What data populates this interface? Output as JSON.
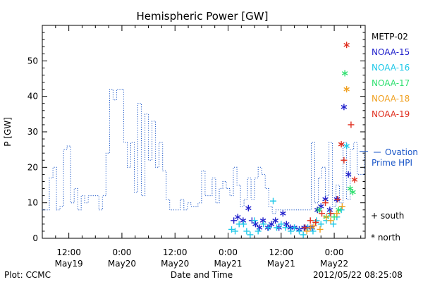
{
  "chart_data": {
    "type": "line",
    "title": "Hemispheric Power [GW]",
    "ylabel": "P [GW]",
    "xlabel": "Date and Time",
    "ylim": [
      0,
      60
    ],
    "yticks": [
      0,
      10,
      20,
      30,
      40,
      50
    ],
    "x_unit": "hours since 2012/05/19 00:00",
    "xlim": [
      6,
      79
    ],
    "xticks": [
      {
        "x": 12,
        "time": "12:00",
        "date": "May19"
      },
      {
        "x": 24,
        "time": "0:00",
        "date": "May20"
      },
      {
        "x": 36,
        "time": "12:00",
        "date": "May20"
      },
      {
        "x": 48,
        "time": "0:00",
        "date": "May21"
      },
      {
        "x": 60,
        "time": "12:00",
        "date": "May21"
      },
      {
        "x": 72,
        "time": "0:00",
        "date": "May22"
      }
    ],
    "ovation": {
      "name": "Ovation Prime HPI",
      "label_line1": "Ovation",
      "label_line2": "Prime HPI",
      "current_value": 24.5,
      "color": "#1a56c8",
      "values": [
        [
          6.0,
          8
        ],
        [
          6.8,
          8
        ],
        [
          7.6,
          17
        ],
        [
          8.4,
          20
        ],
        [
          9.2,
          8
        ],
        [
          10.0,
          9
        ],
        [
          10.8,
          25
        ],
        [
          11.6,
          26
        ],
        [
          12.4,
          10
        ],
        [
          13.2,
          14
        ],
        [
          14.0,
          8
        ],
        [
          14.8,
          12
        ],
        [
          15.6,
          10
        ],
        [
          16.4,
          12
        ],
        [
          17.2,
          12
        ],
        [
          18.0,
          12
        ],
        [
          18.8,
          8
        ],
        [
          19.6,
          12
        ],
        [
          20.4,
          24
        ],
        [
          21.2,
          42
        ],
        [
          22.0,
          39
        ],
        [
          22.8,
          42
        ],
        [
          23.6,
          42
        ],
        [
          24.4,
          27
        ],
        [
          25.2,
          20
        ],
        [
          26.0,
          27
        ],
        [
          26.8,
          13
        ],
        [
          27.6,
          38
        ],
        [
          28.4,
          12
        ],
        [
          29.2,
          35
        ],
        [
          30.0,
          22
        ],
        [
          30.8,
          33
        ],
        [
          31.6,
          20
        ],
        [
          32.4,
          27
        ],
        [
          33.2,
          19
        ],
        [
          34.0,
          11
        ],
        [
          34.8,
          8
        ],
        [
          35.6,
          8
        ],
        [
          36.4,
          8
        ],
        [
          37.2,
          11
        ],
        [
          38.0,
          8
        ],
        [
          38.8,
          10
        ],
        [
          39.6,
          9
        ],
        [
          40.4,
          9
        ],
        [
          41.2,
          10
        ],
        [
          42.0,
          19
        ],
        [
          42.8,
          12
        ],
        [
          43.6,
          12
        ],
        [
          44.4,
          17
        ],
        [
          45.2,
          10
        ],
        [
          46.0,
          14
        ],
        [
          46.8,
          16
        ],
        [
          47.6,
          14
        ],
        [
          48.4,
          12
        ],
        [
          49.2,
          20
        ],
        [
          50.0,
          15
        ],
        [
          50.8,
          9
        ],
        [
          51.6,
          11
        ],
        [
          52.4,
          17
        ],
        [
          53.2,
          11
        ],
        [
          54.0,
          17
        ],
        [
          54.8,
          20
        ],
        [
          55.6,
          18
        ],
        [
          56.4,
          14
        ],
        [
          57.2,
          9
        ],
        [
          58.0,
          7
        ],
        [
          58.8,
          8
        ],
        [
          59.6,
          8
        ],
        [
          60.4,
          8
        ],
        [
          61.2,
          8
        ],
        [
          62.0,
          8
        ],
        [
          62.8,
          8
        ],
        [
          63.6,
          8
        ],
        [
          64.4,
          8
        ],
        [
          65.2,
          8
        ],
        [
          66.0,
          8
        ],
        [
          66.8,
          27
        ],
        [
          67.6,
          10
        ],
        [
          68.4,
          17
        ],
        [
          69.2,
          20
        ],
        [
          70.0,
          12
        ],
        [
          70.8,
          27
        ],
        [
          71.6,
          9
        ],
        [
          72.4,
          15
        ],
        [
          73.2,
          10
        ],
        [
          74.0,
          27
        ],
        [
          74.8,
          11
        ],
        [
          75.6,
          25
        ],
        [
          76.4,
          27
        ],
        [
          77.2,
          18
        ],
        [
          78.0,
          18
        ],
        [
          78.8,
          24
        ]
      ]
    },
    "series": [
      {
        "name": "METP-02",
        "color": "#000000",
        "values": []
      },
      {
        "name": "NOAA-15",
        "color": "#2222cc",
        "values": [
          [
            49.3,
            5,
            "s"
          ],
          [
            50.2,
            6,
            "n"
          ],
          [
            51.4,
            5,
            "n"
          ],
          [
            52.6,
            8.5,
            "n"
          ],
          [
            53.4,
            5,
            "s"
          ],
          [
            54.2,
            4,
            "n"
          ],
          [
            55.1,
            3,
            "n"
          ],
          [
            55.9,
            5,
            "n"
          ],
          [
            57.0,
            3,
            "n"
          ],
          [
            57.8,
            4,
            "n"
          ],
          [
            58.7,
            5,
            "n"
          ],
          [
            59.5,
            3,
            "n"
          ],
          [
            60.4,
            7,
            "n"
          ],
          [
            61.2,
            4,
            "n"
          ],
          [
            62.1,
            3,
            "n"
          ],
          [
            63.0,
            3,
            "n"
          ],
          [
            64.1,
            2.5,
            "n"
          ],
          [
            65.2,
            3,
            "n"
          ],
          [
            66.0,
            3,
            "n"
          ],
          [
            67.0,
            3,
            "n"
          ],
          [
            68.2,
            8,
            "n"
          ],
          [
            69.0,
            9,
            "n"
          ],
          [
            70.0,
            11,
            "n"
          ],
          [
            71.0,
            8,
            "n"
          ],
          [
            72.6,
            11,
            "n"
          ],
          [
            74.2,
            37,
            "n"
          ],
          [
            75.2,
            18,
            "n"
          ]
        ]
      },
      {
        "name": "NOAA-16",
        "color": "#1ec8e8",
        "values": [
          [
            48.8,
            2.5,
            "s"
          ],
          [
            49.6,
            2,
            "s"
          ],
          [
            50.5,
            4,
            "s"
          ],
          [
            51.5,
            4,
            "s"
          ],
          [
            52.2,
            2,
            "s"
          ],
          [
            53.0,
            1,
            "s"
          ],
          [
            54.0,
            5,
            "s"
          ],
          [
            54.8,
            2,
            "s"
          ],
          [
            56.0,
            4,
            "s"
          ],
          [
            57.2,
            3,
            "s"
          ],
          [
            58.2,
            10.5,
            "s"
          ],
          [
            59.0,
            3,
            "s"
          ],
          [
            60.0,
            4,
            "s"
          ],
          [
            61.0,
            3,
            "s"
          ],
          [
            62.2,
            2,
            "s"
          ],
          [
            63.0,
            3,
            "s"
          ],
          [
            64.1,
            2,
            "s"
          ],
          [
            65.0,
            1,
            "s"
          ],
          [
            66.0,
            3,
            "s"
          ],
          [
            67.2,
            2,
            "s"
          ],
          [
            68.0,
            5,
            "s"
          ],
          [
            69.0,
            4,
            "s"
          ],
          [
            70.2,
            5,
            "s"
          ],
          [
            71.0,
            7,
            "s"
          ],
          [
            71.8,
            4,
            "s"
          ],
          [
            72.6,
            6,
            "s"
          ],
          [
            73.6,
            8,
            "s"
          ],
          [
            74.8,
            26,
            "n"
          ]
        ]
      },
      {
        "name": "NOAA-17",
        "color": "#30e070",
        "values": [
          [
            68.6,
            8,
            "n"
          ],
          [
            70.2,
            6,
            "n"
          ],
          [
            72.0,
            6,
            "s"
          ],
          [
            73.0,
            8,
            "n"
          ],
          [
            74.4,
            46.5,
            "n"
          ],
          [
            75.6,
            14,
            "n"
          ],
          [
            76.2,
            13,
            "n"
          ]
        ]
      },
      {
        "name": "NOAA-18",
        "color": "#f0a020",
        "values": [
          [
            65.8,
            2,
            "s"
          ],
          [
            66.6,
            3,
            "s"
          ],
          [
            67.4,
            3.5,
            "s"
          ],
          [
            68.8,
            2.5,
            "s"
          ],
          [
            70.2,
            6,
            "s"
          ],
          [
            71.2,
            5,
            "s"
          ],
          [
            72.6,
            7,
            "s"
          ],
          [
            73.8,
            9,
            "s"
          ],
          [
            74.8,
            42,
            "n"
          ]
        ]
      },
      {
        "name": "NOAA-19",
        "color": "#e03020",
        "values": [
          [
            65.4,
            3,
            "s"
          ],
          [
            66.6,
            5,
            "s"
          ],
          [
            67.8,
            4.5,
            "s"
          ],
          [
            69.2,
            7,
            "s"
          ],
          [
            70.0,
            10,
            "s"
          ],
          [
            71.2,
            7,
            "s"
          ],
          [
            72.8,
            11,
            "s"
          ],
          [
            73.6,
            26.5,
            "n"
          ],
          [
            74.2,
            22,
            "s"
          ],
          [
            74.8,
            54.5,
            "n"
          ],
          [
            75.8,
            32,
            "s"
          ],
          [
            76.6,
            16.5,
            "n"
          ]
        ]
      }
    ],
    "marker_legend": [
      {
        "symbol": "+",
        "label": "south"
      },
      {
        "symbol": "*",
        "label": "north"
      }
    ],
    "legend_placement": "right",
    "grid": false
  },
  "footer": {
    "plot_by": "Plot: CCMC",
    "timestamp": "2012/05/22 08:25:08"
  }
}
